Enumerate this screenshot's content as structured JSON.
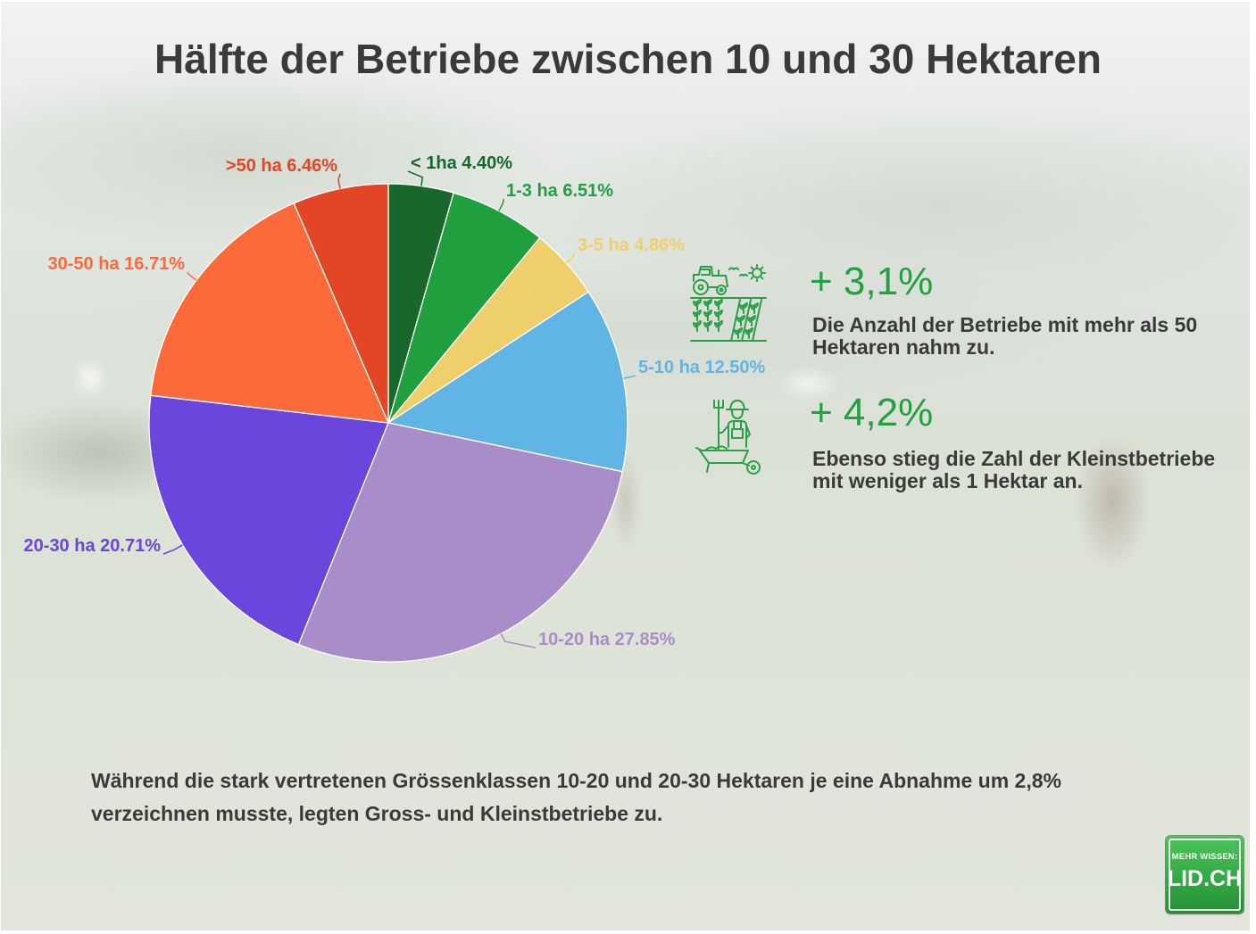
{
  "chart_data": {
    "type": "pie",
    "title": "Hälfte der Betriebe zwischen 10 und 30 Hektaren",
    "slices": [
      {
        "label": "< 1ha",
        "value": 4.4,
        "value_label": "4.40%",
        "color": "#19682b"
      },
      {
        "label": "1-3 ha",
        "value": 6.51,
        "value_label": "6.51%",
        "color": "#1f9f3d"
      },
      {
        "label": "3-5 ha",
        "value": 4.86,
        "value_label": "4.86%",
        "color": "#eecf6c"
      },
      {
        "label": "5-10 ha",
        "value": 12.5,
        "value_label": "12.50%",
        "color": "#60b5e5"
      },
      {
        "label": "10-20 ha",
        "value": 27.85,
        "value_label": "27.85%",
        "color": "#a98dc8"
      },
      {
        "label": "20-30 ha",
        "value": 20.71,
        "value_label": "20.71%",
        "color": "#6a46dc"
      },
      {
        "label": "30-50 ha",
        "value": 16.71,
        "value_label": "16.71%",
        "color": "#fd6a39"
      },
      {
        "label": ">50 ha",
        "value": 6.46,
        "value_label": "6.46%",
        "color": "#e24624"
      }
    ]
  },
  "highlights": [
    {
      "icon": "tractor-field-icon",
      "change": "+ 3,1%",
      "text": "Die Anzahl der Betriebe mit mehr als 50 Hektaren nahm zu."
    },
    {
      "icon": "farmer-wheelbarrow-icon",
      "change": "+ 4,2%",
      "text": "Ebenso stieg die Zahl der Kleinstbetriebe mit weniger als 1 Hektar an."
    }
  ],
  "summary": "Während die stark vertretenen Grössenklassen 10-20 und 20-30 Hektaren je eine Abnahme um 2,8% verzeichnen musste, legten Gross- und Kleinstbetriebe zu.",
  "logo": {
    "tagline": "MEHR WISSEN:",
    "name": "LID.CH"
  },
  "colors": {
    "accent_green": "#23a03f",
    "text": "#3a3a3a",
    "icon_green": "#2aa046",
    "logo_green": "#33a943"
  }
}
